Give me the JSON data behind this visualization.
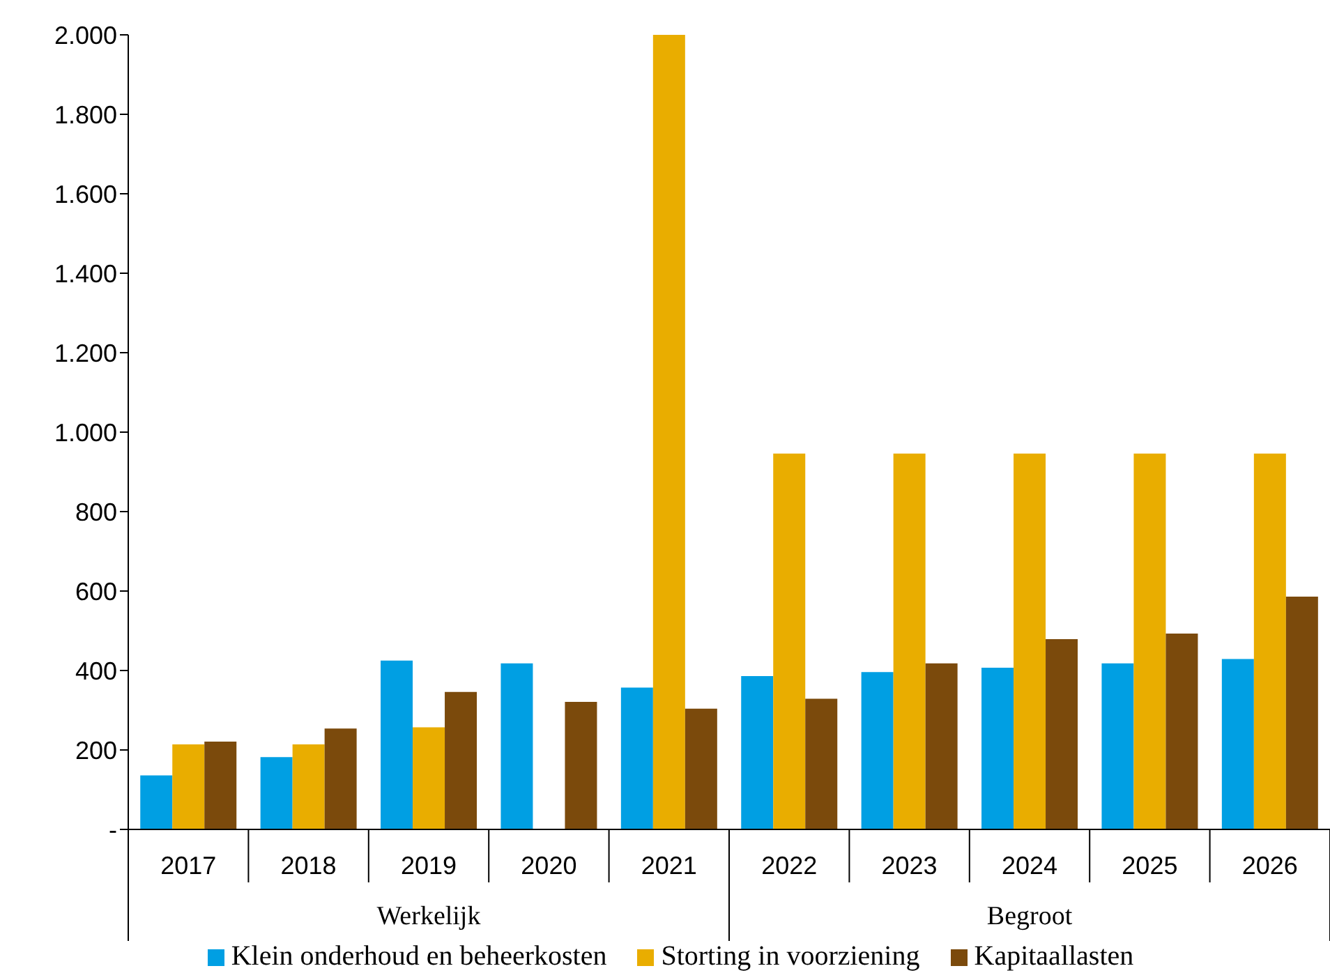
{
  "chart_data": {
    "type": "bar",
    "categories": [
      "2017",
      "2018",
      "2019",
      "2020",
      "2021",
      "2022",
      "2023",
      "2024",
      "2025",
      "2026"
    ],
    "series": [
      {
        "name": "Klein onderhoud en beheerkosten",
        "color": "#009fe3",
        "values": [
          136,
          182,
          425,
          418,
          357,
          386,
          396,
          407,
          418,
          429
        ]
      },
      {
        "name": "Storting in voorziening",
        "color": "#e9ad00",
        "values": [
          214,
          214,
          257,
          0,
          2000,
          946,
          946,
          946,
          946,
          946
        ]
      },
      {
        "name": "Kapitaallasten",
        "color": "#7b4a0c",
        "values": [
          221,
          254,
          346,
          321,
          304,
          329,
          418,
          479,
          493,
          586
        ]
      }
    ],
    "ylim": [
      0,
      2000
    ],
    "yticks": [
      {
        "value": 0,
        "label": "-"
      },
      200,
      400,
      600,
      800,
      {
        "value": 1000,
        "label": "1.000"
      },
      {
        "value": 1200,
        "label": "1.200"
      },
      {
        "value": 1400,
        "label": "1.400"
      },
      {
        "value": 1600,
        "label": "1.600"
      },
      {
        "value": 1800,
        "label": "1.800"
      },
      {
        "value": 2000,
        "label": "2.000"
      }
    ],
    "annotations": [
      "Werkelijk",
      "Begroot"
    ],
    "grid": false,
    "legend": "bottom"
  }
}
